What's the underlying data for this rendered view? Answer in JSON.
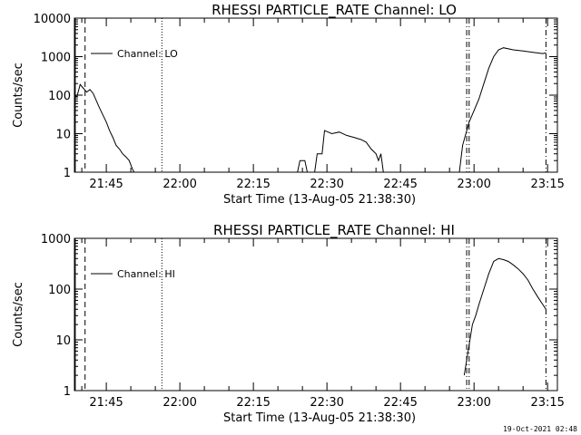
{
  "stamp": "19-Oct-2021 02:48",
  "chart_data": [
    {
      "type": "line",
      "title": "RHESSI PARTICLE_RATE Channel: LO",
      "xlabel": "Start Time (13-Aug-05 21:38:30)",
      "ylabel": "Counts/sec",
      "yscale": "log",
      "ylim": [
        1,
        10000
      ],
      "xlim": [
        "21:38:30",
        "23:17:00"
      ],
      "x_ticks": [
        "21:45",
        "22:00",
        "22:15",
        "22:30",
        "22:45",
        "23:00",
        "23:15"
      ],
      "y_ticks": [
        "1",
        "10",
        "100",
        "1000",
        "10000"
      ],
      "legend": {
        "position": "top-left",
        "label": "Channel: LO"
      },
      "grid": false,
      "markers": [
        {
          "x": "21:38:40",
          "style": "solid"
        },
        {
          "x": "21:40:40",
          "style": "dashed"
        },
        {
          "x": "21:56:20",
          "style": "dotted"
        },
        {
          "x": "22:58:30",
          "style": "dash-dot"
        },
        {
          "x": "22:59:00",
          "style": "dash-dot"
        },
        {
          "x": "23:14:40",
          "style": "dash-dot"
        }
      ],
      "series": [
        {
          "points": [
            [
              "21:38:30",
              100
            ],
            [
              "21:39:00",
              90
            ],
            [
              "21:39:40",
              190
            ],
            [
              "21:40:20",
              150
            ],
            [
              "21:41:00",
              120
            ],
            [
              "21:41:40",
              140
            ],
            [
              "21:42:20",
              110
            ],
            [
              "21:43:00",
              70
            ],
            [
              "21:43:40",
              45
            ],
            [
              "21:44:20",
              30
            ],
            [
              "21:45:00",
              20
            ],
            [
              "21:45:40",
              12
            ],
            [
              "21:46:20",
              8
            ],
            [
              "21:47:00",
              5
            ],
            [
              "21:47:40",
              4
            ],
            [
              "21:48:20",
              3
            ],
            [
              "21:49:00",
              2.5
            ],
            [
              "21:49:40",
              2
            ],
            [
              "21:50:20",
              1.2
            ],
            [
              "21:50:40",
              1
            ]
          ]
        },
        {
          "points": [
            [
              "22:24:00",
              1
            ],
            [
              "22:24:30",
              2
            ],
            [
              "22:25:30",
              2
            ],
            [
              "22:26:00",
              1
            ],
            [
              "22:27:30",
              1
            ],
            [
              "22:28:00",
              3
            ],
            [
              "22:29:00",
              3
            ],
            [
              "22:29:30",
              12
            ],
            [
              "22:31:00",
              10
            ],
            [
              "22:32:30",
              11
            ],
            [
              "22:34:00",
              9
            ],
            [
              "22:35:30",
              8
            ],
            [
              "22:37:00",
              7
            ],
            [
              "22:38:00",
              6
            ],
            [
              "22:39:00",
              4
            ],
            [
              "22:40:00",
              3
            ],
            [
              "22:40:30",
              2
            ],
            [
              "22:41:00",
              3
            ],
            [
              "22:41:30",
              1
            ]
          ]
        },
        {
          "points": [
            [
              "22:57:00",
              1
            ],
            [
              "22:57:40",
              5
            ],
            [
              "22:58:20",
              10
            ],
            [
              "22:59:00",
              20
            ],
            [
              "23:00:00",
              40
            ],
            [
              "23:01:00",
              80
            ],
            [
              "23:02:00",
              200
            ],
            [
              "23:03:00",
              500
            ],
            [
              "23:04:00",
              1000
            ],
            [
              "23:05:00",
              1500
            ],
            [
              "23:06:00",
              1700
            ],
            [
              "23:08:00",
              1500
            ],
            [
              "23:10:00",
              1400
            ],
            [
              "23:12:00",
              1300
            ],
            [
              "23:14:00",
              1200
            ],
            [
              "23:14:40",
              1250
            ]
          ]
        }
      ]
    },
    {
      "type": "line",
      "title": "RHESSI PARTICLE_RATE Channel: HI",
      "xlabel": "Start Time (13-Aug-05 21:38:30)",
      "ylabel": "Counts/sec",
      "yscale": "log",
      "ylim": [
        1,
        1000
      ],
      "xlim": [
        "21:38:30",
        "23:17:00"
      ],
      "x_ticks": [
        "21:45",
        "22:00",
        "22:15",
        "22:30",
        "22:45",
        "23:00",
        "23:15"
      ],
      "y_ticks": [
        "1",
        "10",
        "100",
        "1000"
      ],
      "legend": {
        "position": "top-left",
        "label": "Channel: HI"
      },
      "grid": false,
      "markers": [
        {
          "x": "21:38:40",
          "style": "solid"
        },
        {
          "x": "21:40:40",
          "style": "dashed"
        },
        {
          "x": "21:56:20",
          "style": "dotted"
        },
        {
          "x": "22:58:30",
          "style": "dash-dot"
        },
        {
          "x": "22:59:00",
          "style": "dash-dot"
        },
        {
          "x": "23:14:40",
          "style": "dash-dot"
        }
      ],
      "series": [
        {
          "points": [
            [
              "22:58:00",
              2
            ],
            [
              "22:59:00",
              8
            ],
            [
              "22:59:40",
              20
            ],
            [
              "23:00:20",
              30
            ],
            [
              "23:01:00",
              50
            ],
            [
              "23:02:00",
              100
            ],
            [
              "23:03:00",
              200
            ],
            [
              "23:04:00",
              350
            ],
            [
              "23:05:00",
              400
            ],
            [
              "23:06:00",
              380
            ],
            [
              "23:07:00",
              350
            ],
            [
              "23:08:00",
              300
            ],
            [
              "23:09:00",
              250
            ],
            [
              "23:10:00",
              200
            ],
            [
              "23:11:00",
              150
            ],
            [
              "23:12:00",
              100
            ],
            [
              "23:13:00",
              70
            ],
            [
              "23:14:00",
              50
            ],
            [
              "23:14:40",
              40
            ]
          ]
        }
      ]
    }
  ]
}
